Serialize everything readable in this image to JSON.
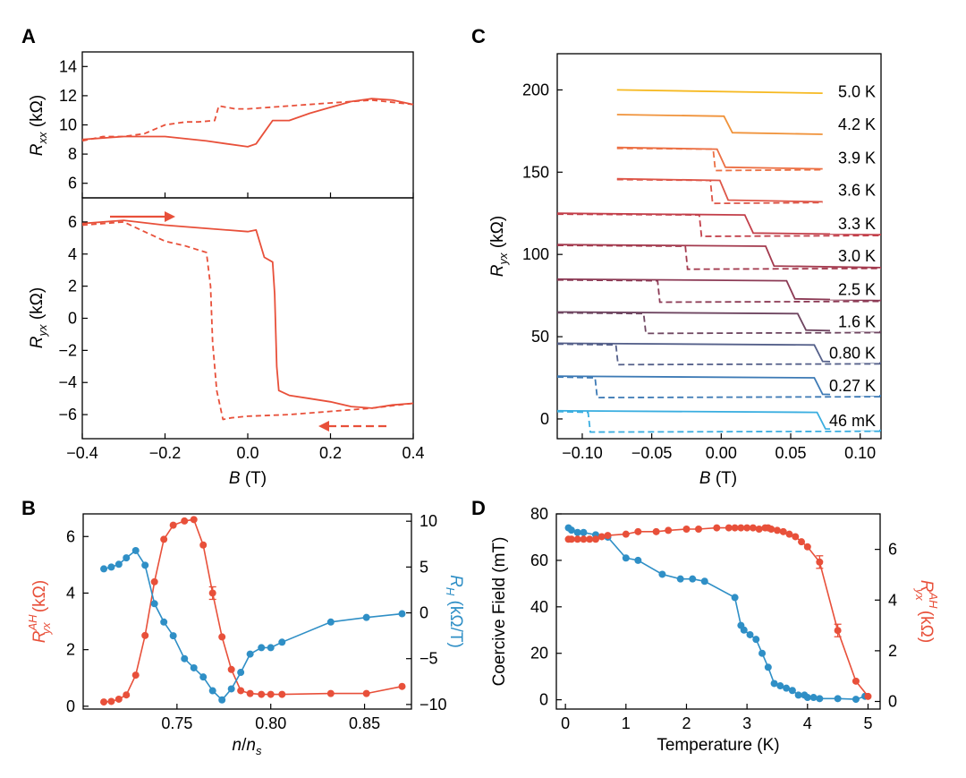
{
  "colors": {
    "red": "#e8503a",
    "blue": "#2f8fc6",
    "text": "#000000"
  },
  "chart_data": [
    {
      "panel": "A",
      "type": "line",
      "title": "A",
      "subplots": [
        {
          "id": "A-top",
          "ylabel": {
            "main": "R",
            "sub": "xx",
            "unit": " (kΩ)"
          },
          "ylim": [
            5,
            15
          ],
          "yticks": [
            6,
            8,
            10,
            12,
            14
          ],
          "series": [
            {
              "name": "sweep up",
              "style": "solid",
              "x": [
                -0.4,
                -0.3,
                -0.2,
                -0.1,
                -0.05,
                0.0,
                0.02,
                0.04,
                0.06,
                0.1,
                0.15,
                0.2,
                0.25,
                0.3,
                0.35,
                0.4
              ],
              "y": [
                9.0,
                9.2,
                9.2,
                8.9,
                8.7,
                8.5,
                8.7,
                9.5,
                10.3,
                10.3,
                10.8,
                11.2,
                11.6,
                11.8,
                11.7,
                11.4
              ]
            },
            {
              "name": "sweep down",
              "style": "dashed",
              "x": [
                -0.4,
                -0.35,
                -0.3,
                -0.25,
                -0.2,
                -0.15,
                -0.12,
                -0.08,
                -0.07,
                -0.03,
                0.0,
                0.1,
                0.2,
                0.3,
                0.4
              ],
              "y": [
                8.9,
                9.2,
                9.2,
                9.4,
                10.0,
                10.2,
                10.2,
                10.3,
                11.3,
                11.1,
                11.1,
                11.3,
                11.5,
                11.7,
                11.4
              ]
            }
          ]
        },
        {
          "id": "A-bottom",
          "ylabel": {
            "main": "R",
            "sub": "yx",
            "unit": " (kΩ)"
          },
          "ylim": [
            -7.5,
            7.5
          ],
          "yticks": [
            6,
            4,
            2,
            0,
            -2,
            -4,
            -6
          ],
          "series": [
            {
              "name": "sweep up",
              "style": "solid",
              "x": [
                -0.4,
                -0.3,
                -0.2,
                -0.1,
                0.0,
                0.02,
                0.04,
                0.06,
                0.065,
                0.07,
                0.075,
                0.1,
                0.15,
                0.2,
                0.25,
                0.3,
                0.35,
                0.4
              ],
              "y": [
                5.9,
                6.1,
                5.8,
                5.6,
                5.4,
                5.5,
                3.8,
                3.5,
                1.5,
                -3.0,
                -4.5,
                -4.8,
                -5.0,
                -5.2,
                -5.5,
                -5.6,
                -5.4,
                -5.3
              ],
              "arrow": "right"
            },
            {
              "name": "sweep down",
              "style": "dashed",
              "x": [
                -0.4,
                -0.3,
                -0.25,
                -0.2,
                -0.15,
                -0.1,
                -0.09,
                -0.085,
                -0.08,
                -0.075,
                -0.06,
                -0.04,
                0.0,
                0.1,
                0.2,
                0.3,
                0.4
              ],
              "y": [
                5.8,
                6.0,
                5.4,
                4.8,
                4.5,
                4.1,
                2.0,
                -1.5,
                -3.0,
                -4.5,
                -6.3,
                -6.2,
                -6.1,
                -6.0,
                -5.8,
                -5.6,
                -5.3
              ],
              "arrow": "left"
            }
          ]
        }
      ],
      "xlim": [
        -0.4,
        0.4
      ],
      "xticks": [
        -0.4,
        -0.2,
        0.0,
        0.2,
        0.4
      ],
      "xtick_labels": [
        "−0.4",
        "−0.2",
        "0.0",
        "0.2",
        "0.4"
      ],
      "xlabel": {
        "main": "B",
        "unit": " (T)"
      }
    },
    {
      "panel": "B",
      "type": "line",
      "title": "B",
      "xlim": [
        0.7,
        0.875
      ],
      "xticks": [
        0.75,
        0.8,
        0.85
      ],
      "xtick_labels": [
        "0.75",
        "0.80",
        "0.85"
      ],
      "xlabel": {
        "main": "n",
        "slash": "/",
        "main2": "n",
        "sub": "s"
      },
      "left_axis": {
        "label": "R",
        "sup": "AH",
        "sub": "yx",
        "unit": " (kΩ)",
        "ylim": [
          -0.1,
          6.8
        ],
        "yticks": [
          0,
          2,
          4,
          6
        ]
      },
      "right_axis": {
        "label": "R",
        "sub": "H",
        "unit": " (kΩ/T)",
        "ylim": [
          -10.5,
          10.8
        ],
        "yticks": [
          10,
          5,
          0,
          -5,
          -10
        ]
      },
      "series": [
        {
          "name": "R_yx^AH",
          "axis": "left",
          "x": [
            0.711,
            0.715,
            0.719,
            0.723,
            0.728,
            0.733,
            0.738,
            0.743,
            0.748,
            0.754,
            0.759,
            0.764,
            0.769,
            0.774,
            0.779,
            0.784,
            0.789,
            0.795,
            0.8,
            0.806,
            0.832,
            0.851,
            0.87
          ],
          "y": [
            0.15,
            0.17,
            0.25,
            0.4,
            1.1,
            2.5,
            4.4,
            5.9,
            6.4,
            6.55,
            6.6,
            5.7,
            4.0,
            2.45,
            1.3,
            0.55,
            0.45,
            0.42,
            0.42,
            0.42,
            0.45,
            0.45,
            0.7
          ],
          "errorbar_index": 12
        },
        {
          "name": "R_H",
          "axis": "right",
          "x": [
            0.711,
            0.715,
            0.719,
            0.723,
            0.728,
            0.733,
            0.738,
            0.743,
            0.748,
            0.754,
            0.759,
            0.764,
            0.769,
            0.774,
            0.779,
            0.784,
            0.789,
            0.795,
            0.8,
            0.806,
            0.832,
            0.851,
            0.87
          ],
          "y": [
            4.8,
            5.0,
            5.3,
            6.0,
            6.8,
            5.2,
            1.0,
            -1.0,
            -2.5,
            -5.0,
            -6.0,
            -7.0,
            -8.5,
            -9.5,
            -8.3,
            -6.5,
            -4.5,
            -3.8,
            -3.8,
            -3.2,
            -1.0,
            -0.5,
            -0.1
          ]
        }
      ]
    },
    {
      "panel": "C",
      "type": "line",
      "title": "C",
      "xlim": [
        -0.118,
        0.115
      ],
      "xticks": [
        -0.1,
        -0.05,
        0.0,
        0.05,
        0.1
      ],
      "xtick_labels": [
        "−0.10",
        "−0.05",
        "0.00",
        "0.05",
        "0.10"
      ],
      "xlabel": {
        "main": "B",
        "unit": " (T)"
      },
      "ylabel": {
        "main": "R",
        "sub": "yx",
        "unit": " (kΩ)"
      },
      "ylim": [
        -12,
        222
      ],
      "yticks": [
        0,
        50,
        100,
        150,
        200
      ],
      "series": [
        {
          "name": "5.0 K",
          "color": "#f6b921",
          "x_start": -0.075,
          "x_end": 0.073,
          "high": 200,
          "low": 198,
          "up_switch": null,
          "down_switch": null
        },
        {
          "name": "4.2 K",
          "color": "#f0933b",
          "x_start": -0.075,
          "x_end": 0.073,
          "high": 185,
          "low": 173,
          "up_switch": 0.005,
          "down_switch": null
        },
        {
          "name": "3.9 K",
          "color": "#ec7044",
          "x_start": -0.075,
          "x_end": 0.073,
          "high": 165,
          "low": 152,
          "up_switch": 0.0,
          "down_switch": -0.005
        },
        {
          "name": "3.6 K",
          "color": "#de5648",
          "x_start": -0.075,
          "x_end": 0.073,
          "high": 146,
          "low": 132,
          "up_switch": 0.002,
          "down_switch": -0.007
        },
        {
          "name": "3.3 K",
          "color": "#c3404b",
          "x_start": -0.118,
          "x_end": 0.115,
          "high": 125,
          "low": 112,
          "up_switch": 0.02,
          "down_switch": -0.015
        },
        {
          "name": "3.0 K",
          "color": "#a33a4e",
          "x_start": -0.118,
          "x_end": 0.115,
          "high": 106,
          "low": 92,
          "up_switch": 0.035,
          "down_switch": -0.025
        },
        {
          "name": "2.5 K",
          "color": "#8c3a55",
          "x_start": -0.118,
          "x_end": 0.115,
          "high": 85,
          "low": 72,
          "up_switch": 0.05,
          "down_switch": -0.045
        },
        {
          "name": "1.6 K",
          "color": "#6f4661",
          "x_start": -0.118,
          "x_end": 0.115,
          "high": 65,
          "low": 53,
          "up_switch": 0.058,
          "down_switch": -0.055
        },
        {
          "name": "0.80 K",
          "color": "#55608a",
          "x_start": -0.118,
          "x_end": 0.115,
          "high": 46,
          "low": 34,
          "up_switch": 0.07,
          "down_switch": -0.075
        },
        {
          "name": "0.27 K",
          "color": "#3d7ab5",
          "x_start": -0.118,
          "x_end": 0.115,
          "high": 26,
          "low": 14,
          "up_switch": 0.07,
          "down_switch": -0.09
        },
        {
          "name": "46 mK",
          "color": "#3aaee0",
          "x_start": -0.118,
          "x_end": 0.115,
          "high": 5,
          "low": -7,
          "up_switch": 0.072,
          "down_switch": -0.095
        }
      ]
    },
    {
      "panel": "D",
      "type": "line",
      "title": "D",
      "xlim": [
        -0.15,
        5.2
      ],
      "xticks": [
        0,
        1,
        2,
        3,
        4,
        5
      ],
      "xtick_labels": [
        "0",
        "1",
        "2",
        "3",
        "4",
        "5"
      ],
      "xlabel": "Temperature (K)",
      "left_axis": {
        "label": "Coercive Field (mT)",
        "ylim": [
          -4,
          80
        ],
        "yticks": [
          0,
          20,
          40,
          60,
          80
        ]
      },
      "right_axis": {
        "label": "R",
        "sup": "AH",
        "sub": "yx",
        "unit": " (kΩ)",
        "ylim": [
          -0.3,
          7.4
        ],
        "yticks": [
          0,
          2,
          4,
          6
        ]
      },
      "series": [
        {
          "name": "Coercive Field",
          "axis": "left",
          "x": [
            0.05,
            0.1,
            0.2,
            0.3,
            0.5,
            0.7,
            1.0,
            1.2,
            1.6,
            1.9,
            2.1,
            2.3,
            2.8,
            2.9,
            2.95,
            3.05,
            3.15,
            3.25,
            3.35,
            3.45,
            3.55,
            3.65,
            3.75,
            3.85,
            3.95,
            4.0,
            4.1,
            4.2,
            4.5,
            4.8,
            4.95
          ],
          "y": [
            74,
            73,
            72,
            72,
            71,
            70,
            61,
            60,
            54,
            52,
            52,
            51,
            44,
            32,
            30,
            28,
            26,
            20,
            14,
            7,
            6,
            5,
            4,
            2,
            2,
            1,
            1,
            0.5,
            0.5,
            0.2,
            1.5
          ]
        },
        {
          "name": "R_yx^AH",
          "axis": "right",
          "x": [
            0.05,
            0.1,
            0.2,
            0.3,
            0.4,
            0.5,
            0.6,
            0.7,
            1.0,
            1.2,
            1.5,
            1.7,
            2.0,
            2.2,
            2.5,
            2.7,
            2.8,
            2.9,
            3.0,
            3.1,
            3.2,
            3.3,
            3.35,
            3.4,
            3.5,
            3.6,
            3.7,
            3.8,
            3.9,
            4.0,
            4.2,
            4.5,
            4.8,
            5.0
          ],
          "y": [
            6.4,
            6.4,
            6.4,
            6.4,
            6.4,
            6.4,
            6.5,
            6.55,
            6.6,
            6.7,
            6.7,
            6.75,
            6.8,
            6.8,
            6.85,
            6.85,
            6.85,
            6.85,
            6.85,
            6.85,
            6.8,
            6.85,
            6.85,
            6.8,
            6.75,
            6.7,
            6.6,
            6.5,
            6.3,
            6.1,
            5.5,
            2.8,
            0.8,
            0.2
          ],
          "errorbar_indices": [
            30,
            31
          ]
        }
      ]
    }
  ]
}
